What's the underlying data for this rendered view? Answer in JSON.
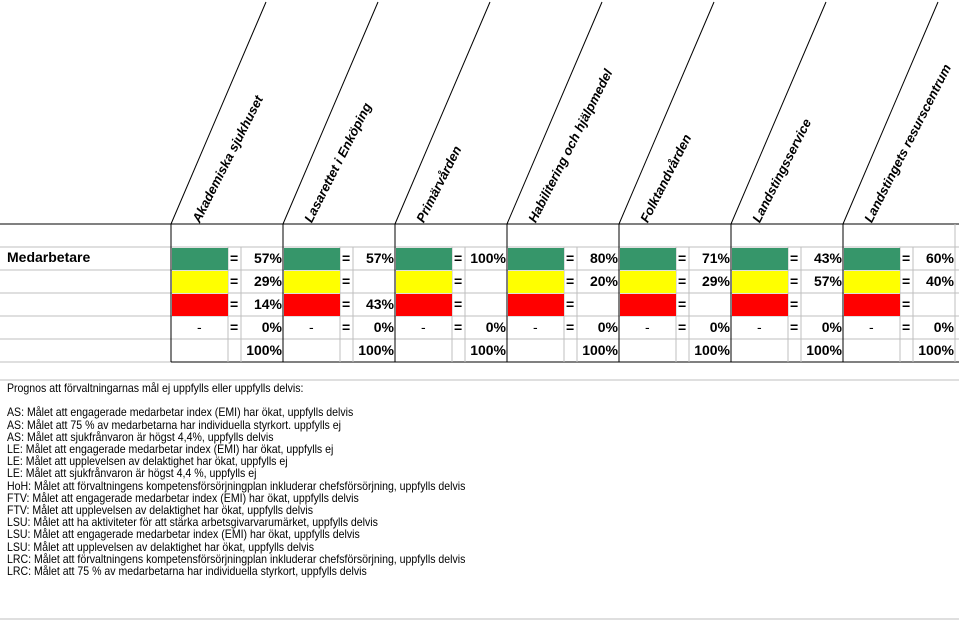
{
  "row_label": "Medarbetare",
  "colors": {
    "green": "#36966a",
    "yellow": "#ffff00",
    "red": "#ff0000"
  },
  "columns": [
    {
      "name": "Akademiska sjukhuset",
      "green": "57%",
      "yellow": "29%",
      "red": "14%",
      "dash": "0%",
      "total": "100%"
    },
    {
      "name": "Lasarettet i Enköping",
      "green": "57%",
      "yellow": "",
      "red": "43%",
      "dash": "0%",
      "total": "100%"
    },
    {
      "name": "Primärvården",
      "green": "100%",
      "yellow": "",
      "red": "",
      "dash": "0%",
      "total": "100%"
    },
    {
      "name": "Habilitering och hjälpmedel",
      "green": "80%",
      "yellow": "20%",
      "red": "",
      "dash": "0%",
      "total": "100%"
    },
    {
      "name": "Folktandvården",
      "green": "71%",
      "yellow": "29%",
      "red": "",
      "dash": "0%",
      "total": "100%"
    },
    {
      "name": "Landstingsservice",
      "green": "43%",
      "yellow": "57%",
      "red": "",
      "dash": "0%",
      "total": "100%"
    },
    {
      "name": "Landstingets resurscentrum",
      "green": "60%",
      "yellow": "40%",
      "red": "",
      "dash": "0%",
      "total": "100%"
    }
  ],
  "symbols": {
    "equals": "=",
    "dash": "-"
  },
  "notes": [
    "Prognos att förvaltningarnas  mål ej uppfylls eller uppfylls delvis:",
    "",
    "AS:   Målet att engagerade  medarbetar index (EMI) har ökat, uppfylls delvis",
    "AS:   Målet att 75 % av medarbetarna  har individuella  styrkort. uppfylls ej",
    "AS:   Målet att sjukfrånvaron  är högst 4,4%, uppfylls delvis",
    "LE:   Målet att engagerade  medarbetar index (EMI) har ökat, uppfylls ej",
    "LE:   Målet att upplevelsen  av delaktighet har ökat, uppfylls ej",
    "LE:   Målet att sjukfrånvaron  är högst 4,4 %, uppfylls ej",
    "HoH: Målet att förvaltningens  kompetensförsörjningplan  inkluderar chefsförsörjning,  uppfylls delvis",
    "FTV:  Målet att engagerade  medarbetar index (EMI) har ökat, uppfylls delvis",
    "FTV:  Målet att upplevelsen  av delaktighet har ökat, uppfylls delvis",
    "LSU:  Målet att ha aktiviteter för att stärka arbetsgivarvarumärket,  uppfylls delvis",
    "LSU:  Målet att engagerade medarbetar index (EMI) har ökat, uppfylls delvis",
    "LSU:  Målet att upplevelsen av delaktighet har ökat, uppfylls delvis",
    "LRC: Målet att förvaltningens  kompetensförsörjningplan  inkluderar chefsförsörjning,  uppfylls delvis",
    "LRC: Målet att 75 % av medarbetarna  har individuella  styrkort, uppfylls delvis"
  ]
}
